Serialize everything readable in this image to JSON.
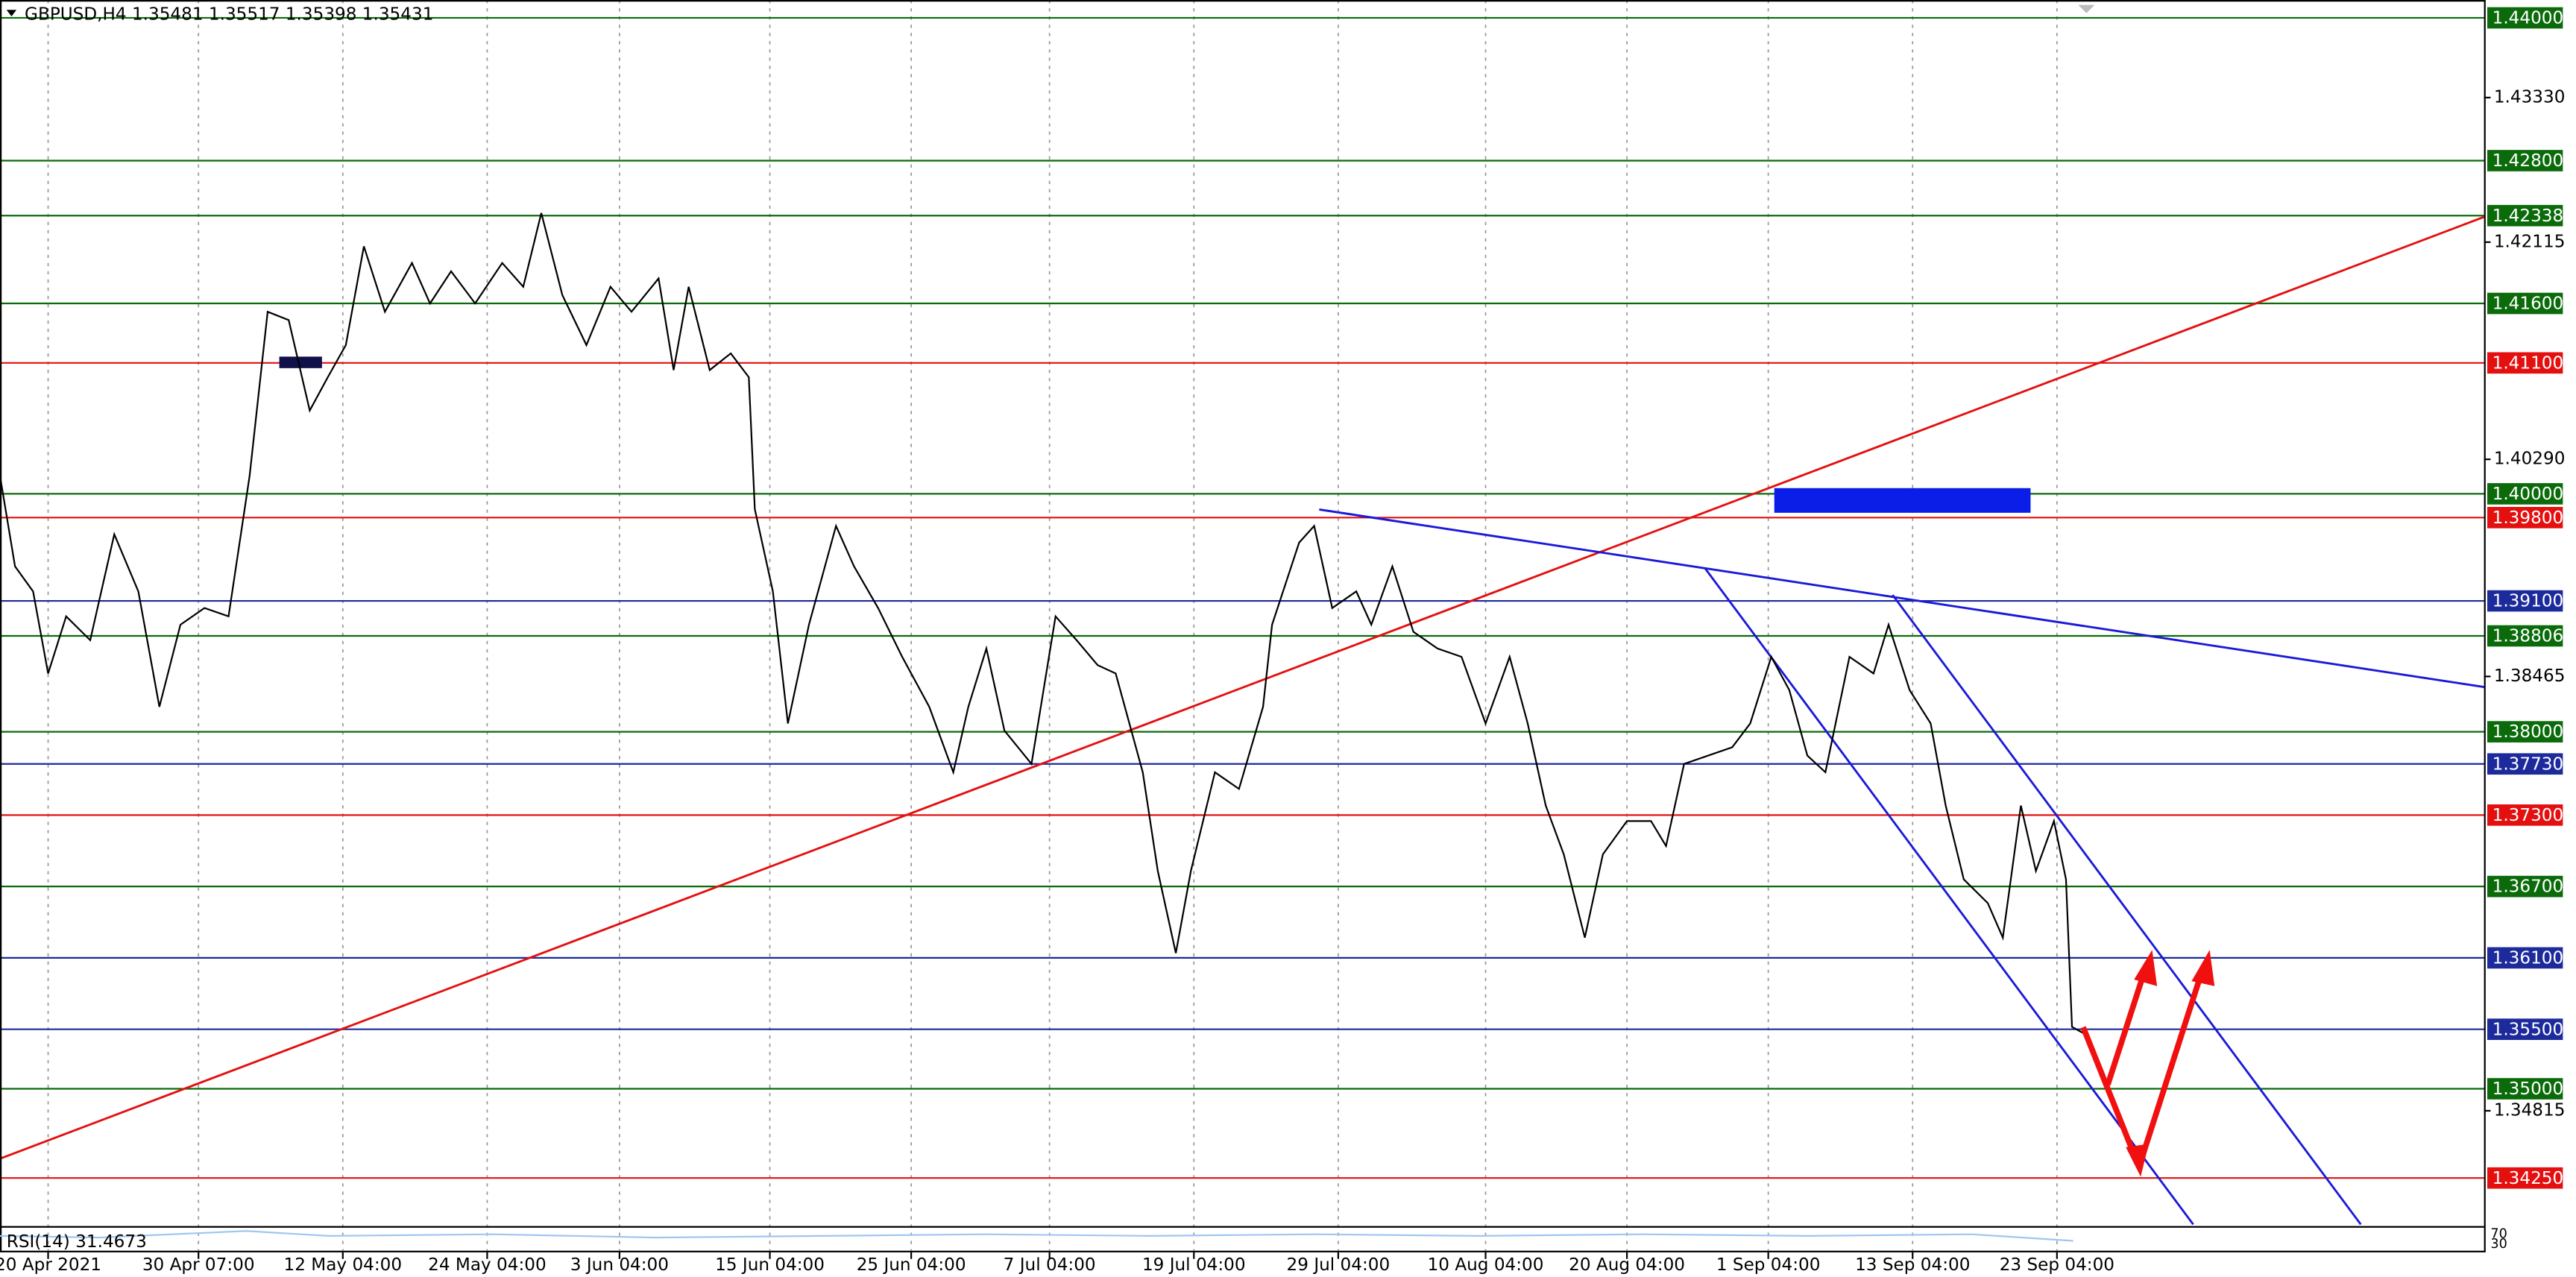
{
  "chart_data": {
    "type": "line",
    "title": "GBPUSD,H4  1.35481 1.35517 1.35398 1.35431",
    "color": "#000000",
    "x": [
      0,
      5,
      11,
      16,
      22,
      30,
      38,
      46,
      53,
      60,
      68,
      76,
      83,
      89,
      96,
      103,
      109,
      115,
      121,
      128,
      137,
      143,
      150,
      158,
      167,
      174,
      180,
      187,
      195,
      203,
      210,
      219,
      224,
      229,
      236,
      243,
      249,
      251,
      257,
      262,
      269,
      278,
      284,
      292,
      300,
      309,
      317,
      322,
      328,
      334,
      343,
      351,
      358,
      365,
      371,
      380,
      385,
      391,
      396,
      404,
      412,
      420,
      423,
      432,
      437,
      443,
      451,
      456,
      463,
      470,
      478,
      486,
      494,
      502,
      508,
      514,
      520,
      527,
      533,
      541,
      549,
      554,
      560,
      568,
      576,
      582,
      589,
      595,
      601,
      607,
      615,
      623,
      628,
      635,
      642,
      647,
      653,
      661,
      666,
      672,
      677,
      683,
      687,
      689,
      694
    ],
    "values": [
      1.4015,
      1.3939,
      1.3918,
      1.3849,
      1.3897,
      1.3877,
      1.3966,
      1.3918,
      1.3821,
      1.389,
      1.3904,
      1.3897,
      1.4015,
      1.4153,
      1.4146,
      1.407,
      1.4098,
      1.4125,
      1.4208,
      1.4153,
      1.4194,
      1.416,
      1.4187,
      1.416,
      1.4194,
      1.4174,
      1.4236,
      1.4167,
      1.4125,
      1.4174,
      1.4153,
      1.4181,
      1.4104,
      1.4174,
      1.4104,
      1.4118,
      1.4098,
      1.3987,
      1.3918,
      1.3807,
      1.389,
      1.3973,
      1.3939,
      1.3904,
      1.3863,
      1.3821,
      1.3766,
      1.3821,
      1.387,
      1.3801,
      1.3773,
      1.3897,
      1.3877,
      1.3856,
      1.3849,
      1.3766,
      1.3683,
      1.3614,
      1.3683,
      1.3766,
      1.3752,
      1.3821,
      1.389,
      1.3959,
      1.3973,
      1.3904,
      1.3918,
      1.389,
      1.3939,
      1.3884,
      1.387,
      1.3863,
      1.3807,
      1.3863,
      1.3807,
      1.3738,
      1.3697,
      1.3627,
      1.3697,
      1.3725,
      1.3725,
      1.3704,
      1.3773,
      1.378,
      1.3787,
      1.3807,
      1.3863,
      1.3835,
      1.378,
      1.3766,
      1.3863,
      1.3849,
      1.389,
      1.3835,
      1.3807,
      1.3738,
      1.3676,
      1.3656,
      1.3627,
      1.3738,
      1.3683,
      1.3725,
      1.3676,
      1.3552,
      1.3545
    ],
    "xlim": [
      0,
      826
    ],
    "ylim": [
      1.3386,
      1.4415
    ],
    "xticks": [
      {
        "value": 16,
        "label": "20 Apr 2021"
      },
      {
        "value": 66,
        "label": "30 Apr 07:00"
      },
      {
        "value": 114,
        "label": "12 May 04:00"
      },
      {
        "value": 162,
        "label": "24 May 04:00"
      },
      {
        "value": 206,
        "label": "3 Jun 04:00"
      },
      {
        "value": 256,
        "label": "15 Jun 04:00"
      },
      {
        "value": 303,
        "label": "25 Jun 04:00"
      },
      {
        "value": 349,
        "label": "7 Jul 04:00"
      },
      {
        "value": 397,
        "label": "19 Jul 04:00"
      },
      {
        "value": 445,
        "label": "29 Jul 04:00"
      },
      {
        "value": 494,
        "label": "10 Aug 04:00"
      },
      {
        "value": 541,
        "label": "20 Aug 04:00"
      },
      {
        "value": 588,
        "label": "1 Sep 04:00"
      },
      {
        "value": 636,
        "label": "13 Sep 04:00"
      },
      {
        "value": 684,
        "label": "23 Sep 04:00"
      }
    ],
    "yticks": [
      {
        "value": 1.4333,
        "label": "1.43330"
      },
      {
        "value": 1.42115,
        "label": "1.42115"
      },
      {
        "value": 1.4029,
        "label": "1.40290"
      },
      {
        "value": 1.38465,
        "label": "1.38465"
      },
      {
        "value": 1.34815,
        "label": "1.34815"
      }
    ],
    "levels": [
      {
        "value": 1.44,
        "label": "1.44000",
        "color": "#0b6b0b"
      },
      {
        "value": 1.428,
        "label": "1.42800",
        "color": "#0b6b0b"
      },
      {
        "value": 1.42338,
        "label": "1.42338",
        "color": "#0b6b0b"
      },
      {
        "value": 1.416,
        "label": "1.41600",
        "color": "#0b6b0b"
      },
      {
        "value": 1.411,
        "label": "1.41100",
        "color": "#e41010"
      },
      {
        "value": 1.4,
        "label": "1.40000",
        "color": "#0b6b0b"
      },
      {
        "value": 1.398,
        "label": "1.39800",
        "color": "#e41010"
      },
      {
        "value": 1.391,
        "label": "1.39100",
        "color": "#1c2a9c"
      },
      {
        "value": 1.38806,
        "label": "1.38806",
        "color": "#0b6b0b"
      },
      {
        "value": 1.38,
        "label": "1.38000",
        "color": "#0b6b0b"
      },
      {
        "value": 1.3773,
        "label": "1.37730",
        "color": "#1c2a9c"
      },
      {
        "value": 1.373,
        "label": "1.37300",
        "color": "#e41010"
      },
      {
        "value": 1.367,
        "label": "1.36700",
        "color": "#0b6b0b"
      },
      {
        "value": 1.361,
        "label": "1.36100",
        "color": "#1c2a9c"
      },
      {
        "value": 1.355,
        "label": "1.35500",
        "color": "#1c2a9c"
      },
      {
        "value": 1.35,
        "label": "1.35000",
        "color": "#0b6b0b"
      },
      {
        "value": 1.3425,
        "label": "1.34250",
        "color": "#e41010"
      }
    ],
    "indicator": "RSI(14) 31.4673",
    "indicator_ticks": [
      70,
      30
    ]
  }
}
